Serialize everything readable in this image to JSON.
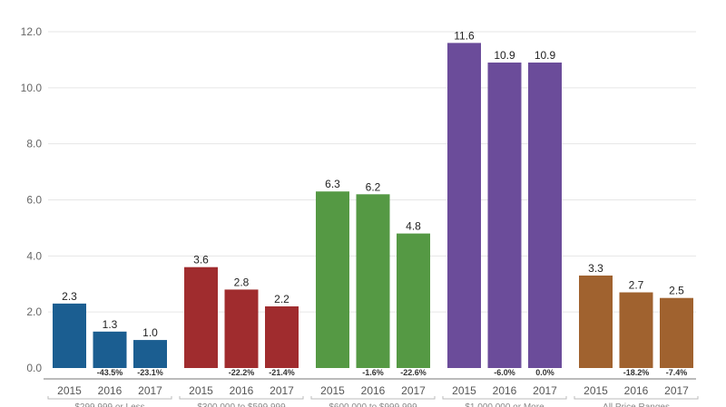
{
  "chart_data": {
    "type": "bar",
    "title": "",
    "xlabel": "",
    "ylabel": "",
    "ylim": [
      0,
      12
    ],
    "y_ticks": [
      "0.0",
      "2.0",
      "4.0",
      "6.0",
      "8.0",
      "10.0",
      "12.0"
    ],
    "grid": true,
    "legend": "none",
    "groups": [
      {
        "name": "$299,999 or Less",
        "color": "#1b5e91",
        "categories": [
          "2015",
          "2016",
          "2017"
        ],
        "values": [
          2.3,
          1.3,
          1.0
        ],
        "value_labels": [
          "2.3",
          "1.3",
          "1.0"
        ],
        "changes": [
          "",
          "-43.5%",
          "-23.1%"
        ]
      },
      {
        "name": "$300,000 to $599,999",
        "color": "#a02c2e",
        "categories": [
          "2015",
          "2016",
          "2017"
        ],
        "values": [
          3.6,
          2.8,
          2.2
        ],
        "value_labels": [
          "3.6",
          "2.8",
          "2.2"
        ],
        "changes": [
          "",
          "-22.2%",
          "-21.4%"
        ]
      },
      {
        "name": "$600,000 to $999,999",
        "color": "#559944",
        "categories": [
          "2015",
          "2016",
          "2017"
        ],
        "values": [
          6.3,
          6.2,
          4.8
        ],
        "value_labels": [
          "6.3",
          "6.2",
          "4.8"
        ],
        "changes": [
          "",
          "-1.6%",
          "-22.6%"
        ]
      },
      {
        "name": "$1,000,000 or More",
        "color": "#6b4c9a",
        "categories": [
          "2015",
          "2016",
          "2017"
        ],
        "values": [
          11.6,
          10.9,
          10.9
        ],
        "value_labels": [
          "11.6",
          "10.9",
          "10.9"
        ],
        "changes": [
          "",
          "-6.0%",
          "0.0%"
        ]
      },
      {
        "name": "All Price Ranges",
        "color": "#a0622f",
        "categories": [
          "2015",
          "2016",
          "2017"
        ],
        "values": [
          3.3,
          2.7,
          2.5
        ],
        "value_labels": [
          "3.3",
          "2.7",
          "2.5"
        ],
        "changes": [
          "",
          "-18.2%",
          "-7.4%"
        ]
      }
    ]
  }
}
